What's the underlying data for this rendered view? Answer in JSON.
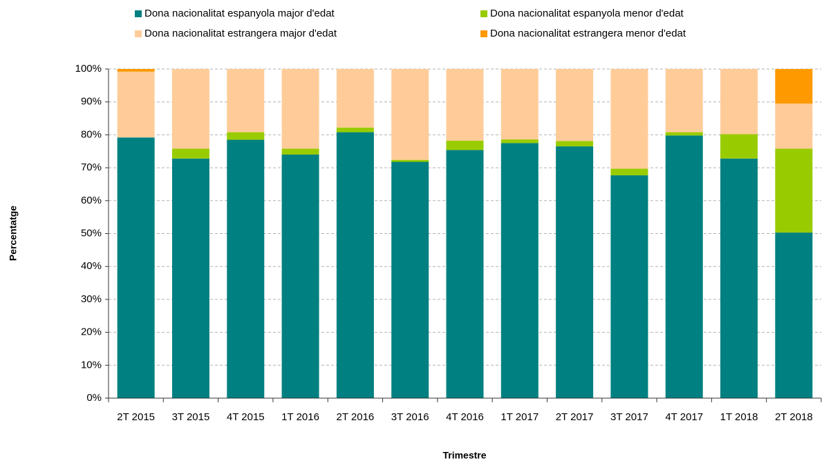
{
  "chart_data": {
    "type": "stacked_bar",
    "categories": [
      "2T 2015",
      "3T 2015",
      "4T 2015",
      "1T 2016",
      "2T 2016",
      "3T 2016",
      "4T 2016",
      "1T 2017",
      "2T 2017",
      "3T 2017",
      "4T 2017",
      "1T 2018",
      "2T 2018"
    ],
    "series": [
      {
        "name": "Dona nacionalitat espanyola major d'edat",
        "color": "#008080",
        "values": [
          79.2,
          72.8,
          78.5,
          74,
          80.8,
          71.8,
          75.4,
          77.5,
          76.5,
          67.7,
          79.8,
          72.8,
          50.3
        ]
      },
      {
        "name": "Dona nacionalitat espanyola menor d'edat",
        "color": "#99cc00",
        "values": [
          0,
          3,
          2.3,
          1.8,
          1.4,
          0.6,
          2.8,
          1.1,
          1.6,
          2,
          1,
          7.4,
          25.5
        ]
      },
      {
        "name": "Dona nacionalitat estrangera major d'edat",
        "color": "#ffcc99",
        "values": [
          20,
          24.2,
          19.2,
          24.2,
          17.8,
          27.6,
          21.8,
          21.4,
          21.9,
          30.3,
          19.2,
          19.8,
          13.7
        ]
      },
      {
        "name": "Dona nacionalitat estrangera menor d'edat",
        "color": "#ff9900",
        "values": [
          0.8,
          0,
          0,
          0,
          0,
          0,
          0,
          0,
          0,
          0,
          0,
          0,
          10.5
        ]
      }
    ],
    "ylabel": "Percentatge",
    "xlabel": "Trimestre",
    "ylim": [
      0,
      100
    ],
    "yticks": [
      {
        "value": 0,
        "label": "0%"
      },
      {
        "value": 10,
        "label": "10%"
      },
      {
        "value": 20,
        "label": "20%"
      },
      {
        "value": 30,
        "label": "30%"
      },
      {
        "value": 40,
        "label": "40%"
      },
      {
        "value": 50,
        "label": "50%"
      },
      {
        "value": 60,
        "label": "60%"
      },
      {
        "value": 70,
        "label": "70%"
      },
      {
        "value": 80,
        "label": "80%"
      },
      {
        "value": 90,
        "label": "90%"
      },
      {
        "value": 100,
        "label": "100%"
      }
    ],
    "grid": true
  }
}
